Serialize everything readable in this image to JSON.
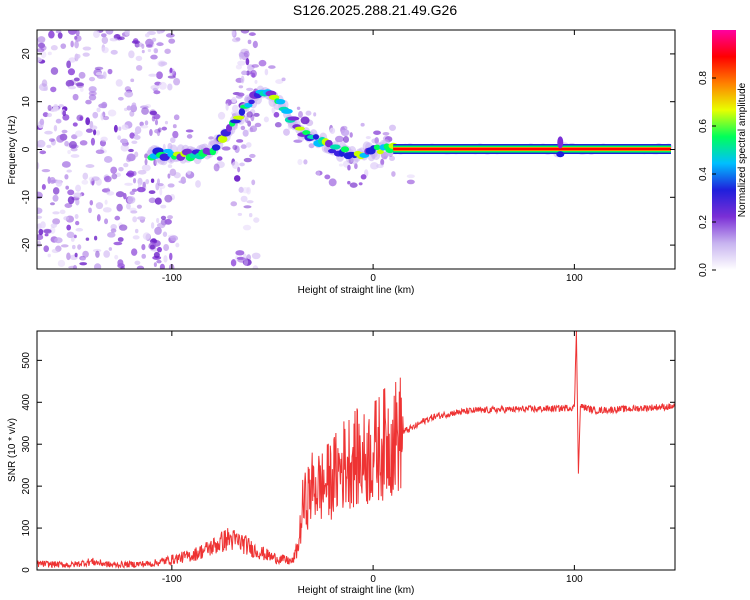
{
  "title": "S126.2025.288.21.49.G26",
  "chart_data": [
    {
      "type": "heatmap",
      "title": "S126.2025.288.21.49.G26",
      "xlabel": "Height of straight line (km)",
      "ylabel": "Frequency (Hz)",
      "xlim": [
        -167,
        150
      ],
      "ylim": [
        -25,
        25
      ],
      "x_ticks": [
        -100,
        0,
        100
      ],
      "y_ticks": [
        -20,
        -10,
        0,
        10,
        20
      ],
      "ridge": {
        "x": [
          -110,
          -100,
          -90,
          -80,
          -75,
          -70,
          -65,
          -60,
          -55,
          -50,
          -45,
          -40,
          -35,
          -30,
          -25,
          -20,
          -15,
          -10,
          -5,
          0,
          5,
          10,
          20,
          40,
          60,
          80,
          90,
          92,
          95,
          100,
          120,
          148
        ],
        "freq": [
          -1,
          -1,
          -1.2,
          0,
          2.5,
          5.5,
          7.5,
          10.5,
          12.5,
          11,
          9,
          6,
          3.5,
          2.5,
          1.5,
          0,
          -0.5,
          -1,
          -0.7,
          -0.3,
          0,
          0.1,
          0.1,
          0.1,
          0.1,
          0.1,
          0,
          -1,
          0.5,
          0.1,
          0.1,
          0.1
        ]
      },
      "colorbar": {
        "label": "Normalized spectral amplitude",
        "ticks": [
          "0.0",
          "0.2",
          "0.4",
          "0.6",
          "0.8"
        ],
        "range": [
          0,
          1
        ],
        "colors": [
          "#ffffff",
          "#c8b4f0",
          "#7b2fd6",
          "#1f1fdc",
          "#00bfff",
          "#00ff5a",
          "#e8ff00",
          "#ff8000",
          "#ff0000",
          "#ff00a0"
        ]
      }
    },
    {
      "type": "line",
      "xlabel": "Height of straight line (km)",
      "ylabel": "SNR (10 * v/v)",
      "xlim": [
        -167,
        150
      ],
      "ylim": [
        0,
        570
      ],
      "x_ticks": [
        -100,
        0,
        100
      ],
      "y_ticks": [
        0,
        100,
        200,
        300,
        400,
        500
      ],
      "color": "#ee3333",
      "series": [
        {
          "name": "SNR",
          "x": [
            -167,
            -150,
            -140,
            -130,
            -110,
            -100,
            -90,
            -80,
            -72,
            -65,
            -60,
            -55,
            -50,
            -45,
            -40,
            -37,
            -35,
            -30,
            -25,
            -20,
            -15,
            -10,
            -5,
            0,
            5,
            10,
            15,
            20,
            25,
            30,
            40,
            50,
            60,
            70,
            80,
            90,
            95,
            100,
            101,
            102,
            103,
            105,
            110,
            120,
            130,
            140,
            150
          ],
          "y": [
            15,
            12,
            20,
            12,
            15,
            25,
            35,
            55,
            75,
            65,
            50,
            40,
            30,
            25,
            20,
            60,
            150,
            200,
            200,
            220,
            250,
            270,
            260,
            280,
            300,
            315,
            330,
            340,
            355,
            365,
            375,
            380,
            382,
            383,
            384,
            385,
            386,
            388,
            570,
            230,
            390,
            388,
            380,
            383,
            385,
            388,
            390
          ]
        }
      ]
    }
  ]
}
